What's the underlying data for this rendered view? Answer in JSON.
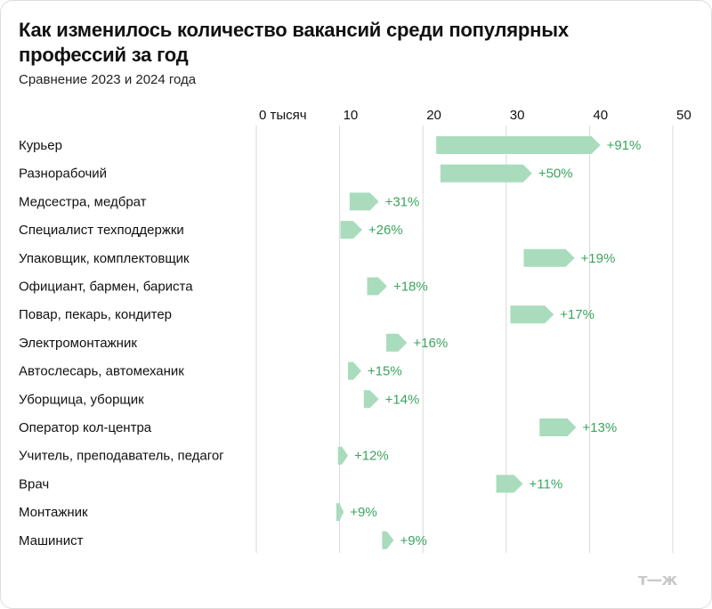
{
  "title": "Как изменилось количество вакансий среди популярных профессий за год",
  "subtitle": "Сравнение 2023 и 2024 года",
  "logo": "т—ж",
  "colors": {
    "bar": "#a9dcbc",
    "label": "#3aa55f",
    "grid": "#d9d9d9"
  },
  "chart_data": {
    "type": "bar",
    "orientation": "horizontal",
    "xlim": [
      0,
      50
    ],
    "ticks": [
      {
        "value": 0,
        "label": "0 тысяч"
      },
      {
        "value": 10,
        "label": "10"
      },
      {
        "value": 20,
        "label": "20"
      },
      {
        "value": 30,
        "label": "30"
      },
      {
        "value": 40,
        "label": "40"
      },
      {
        "value": 50,
        "label": "50"
      }
    ],
    "series": [
      {
        "values_2023": [
          21.6,
          22.1,
          11.2,
          10.1,
          32.1,
          13.3,
          30.5,
          15.6,
          11.0,
          12.9,
          34.0,
          9.8,
          28.8,
          9.6,
          15.1
        ],
        "values_2024": [
          41.3,
          33.1,
          14.7,
          12.7,
          38.2,
          15.7,
          35.7,
          18.1,
          12.6,
          14.7,
          38.4,
          11.0,
          32.0,
          10.5,
          16.5
        ]
      }
    ],
    "categories": [
      "Курьер",
      "Разнорабочий",
      "Медсестра, медбрат",
      "Специалист техподдержки",
      "Упаковщик, комплектовщик",
      "Официант, бармен, бариста",
      "Повар, пекарь, кондитер",
      "Электромонтажник",
      "Автослесарь, автомеханик",
      "Уборщица, уборщик",
      "Оператор кол-центра",
      "Учитель, преподаватель, педагог",
      "Врач",
      "Монтажник",
      "Машинист"
    ],
    "labels": [
      "+91%",
      "+50%",
      "+31%",
      "+26%",
      "+19%",
      "+18%",
      "+17%",
      "+16%",
      "+15%",
      "+14%",
      "+13%",
      "+12%",
      "+11%",
      "+9%",
      "+9%"
    ]
  }
}
